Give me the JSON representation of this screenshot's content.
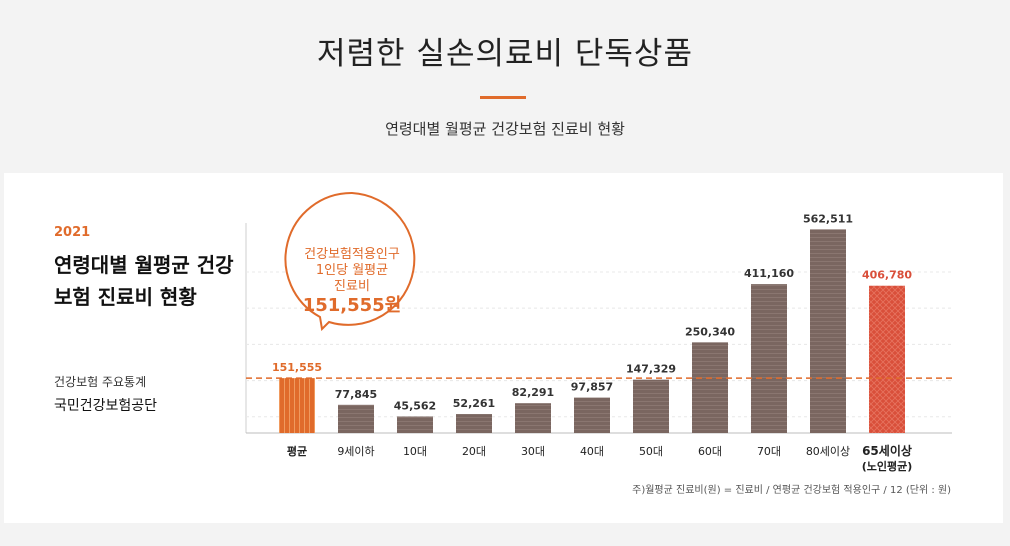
{
  "header": {
    "title": "저렴한 실손의료비 단독상품",
    "subtitle": "연령대별 월평균 건강보험 진료비 현황"
  },
  "panel": {
    "year": "2021",
    "heading": "연령대별 월평균 건강보험 진료비 현황",
    "source_label": "건강보험 주요통계",
    "source_org": "국민건강보험공단",
    "note": "주)월평균 진료비(원) = 진료비 / 연평균 건강보험 적용인구 / 12  (단위 : 원)"
  },
  "callout": {
    "text": [
      "건강보험적용인구",
      "1인당 월평균",
      "진료비"
    ],
    "value": "151,555원"
  },
  "colors": {
    "accent": "#e06b2b",
    "bar": "#7a6660",
    "highlight": "#d94f3a"
  },
  "chart_data": {
    "type": "bar",
    "title": "연령대별 월평균 건강보험 진료비 현황",
    "categories": [
      "평균",
      "9세이하",
      "10대",
      "20대",
      "30대",
      "40대",
      "50대",
      "60대",
      "70대",
      "80세이상",
      "65세이상"
    ],
    "sub_labels": [
      "",
      "",
      "",
      "",
      "",
      "",
      "",
      "",
      "",
      "",
      "(노인평균)"
    ],
    "values": [
      151555,
      77845,
      45562,
      52261,
      82291,
      97857,
      147329,
      250340,
      411160,
      562511,
      406780
    ],
    "value_labels": [
      "151,555",
      "77,845",
      "45,562",
      "52,261",
      "82,291",
      "97,857",
      "147,329",
      "250,340",
      "411,160",
      "562,511",
      "406,780"
    ],
    "bar_styles": [
      "average",
      "normal",
      "normal",
      "normal",
      "normal",
      "normal",
      "normal",
      "normal",
      "normal",
      "normal",
      "elderly"
    ],
    "reference_line": 151555,
    "ylim": [
      0,
      580000
    ],
    "unit": "원",
    "grid": true
  }
}
